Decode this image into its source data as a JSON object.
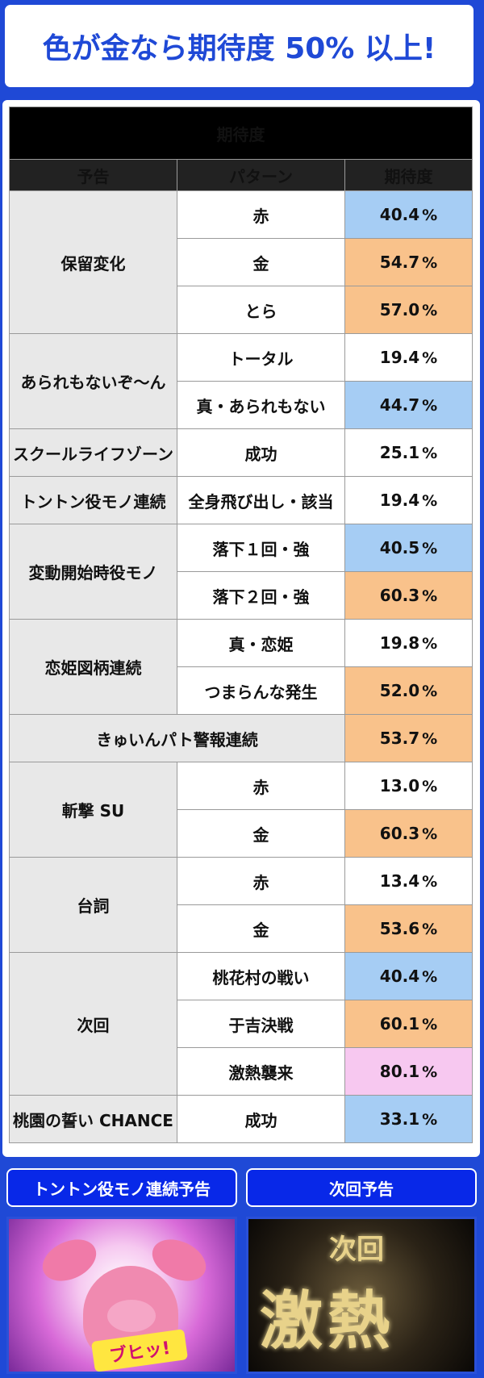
{
  "headline": "色が金なら期待度 50% 以上!",
  "table": {
    "title": "期待度",
    "headers": [
      "予告",
      "パターン",
      "期待度"
    ],
    "percent_sign": "%",
    "groups": [
      {
        "notice": "保留変化",
        "rows": [
          {
            "pattern": "赤",
            "value": "40.4",
            "color": "blue"
          },
          {
            "pattern": "金",
            "value": "54.7",
            "color": "orange"
          },
          {
            "pattern": "とら",
            "value": "57.0",
            "color": "orange"
          }
        ]
      },
      {
        "notice": "あられもないぞ〜ん",
        "rows": [
          {
            "pattern": "トータル",
            "value": "19.4",
            "color": "white"
          },
          {
            "pattern": "真・あられもない",
            "value": "44.7",
            "color": "blue"
          }
        ]
      },
      {
        "notice": "スクールライフゾーン",
        "rows": [
          {
            "pattern": "成功",
            "value": "25.1",
            "color": "white"
          }
        ]
      },
      {
        "notice": "トントン役モノ連続",
        "rows": [
          {
            "pattern": "全身飛び出し・該当",
            "value": "19.4",
            "color": "white"
          }
        ]
      },
      {
        "notice": "変動開始時役モノ",
        "rows": [
          {
            "pattern": "落下１回・強",
            "value": "40.5",
            "color": "blue"
          },
          {
            "pattern": "落下２回・強",
            "value": "60.3",
            "color": "orange"
          }
        ]
      },
      {
        "notice": "恋姫図柄連続",
        "rows": [
          {
            "pattern": "真・恋姫",
            "value": "19.8",
            "color": "white"
          },
          {
            "pattern": "つまらんな発生",
            "value": "52.0",
            "color": "orange"
          }
        ]
      },
      {
        "notice": "きゅいんパト警報連続",
        "span": true,
        "rows": [
          {
            "pattern": "",
            "value": "53.7",
            "color": "orange"
          }
        ]
      },
      {
        "notice": "斬撃 SU",
        "rows": [
          {
            "pattern": "赤",
            "value": "13.0",
            "color": "white"
          },
          {
            "pattern": "金",
            "value": "60.3",
            "color": "orange"
          }
        ]
      },
      {
        "notice": "台詞",
        "rows": [
          {
            "pattern": "赤",
            "value": "13.4",
            "color": "white"
          },
          {
            "pattern": "金",
            "value": "53.6",
            "color": "orange"
          }
        ]
      },
      {
        "notice": "次回",
        "rows": [
          {
            "pattern": "桃花村の戦い",
            "value": "40.4",
            "color": "blue"
          },
          {
            "pattern": "于吉決戦",
            "value": "60.1",
            "color": "orange"
          },
          {
            "pattern": "激熱襲来",
            "value": "80.1",
            "color": "pink"
          }
        ]
      },
      {
        "notice": "桃園の誓い CHANCE",
        "rows": [
          {
            "pattern": "成功",
            "value": "33.1",
            "color": "blue"
          }
        ]
      }
    ]
  },
  "buttons": {
    "left_label": "トントン役モノ連続予告",
    "right_label": "次回予告"
  },
  "images": {
    "left_caption": "ブヒッ!",
    "right_text_top": "次回",
    "right_text_main": "激熱"
  }
}
